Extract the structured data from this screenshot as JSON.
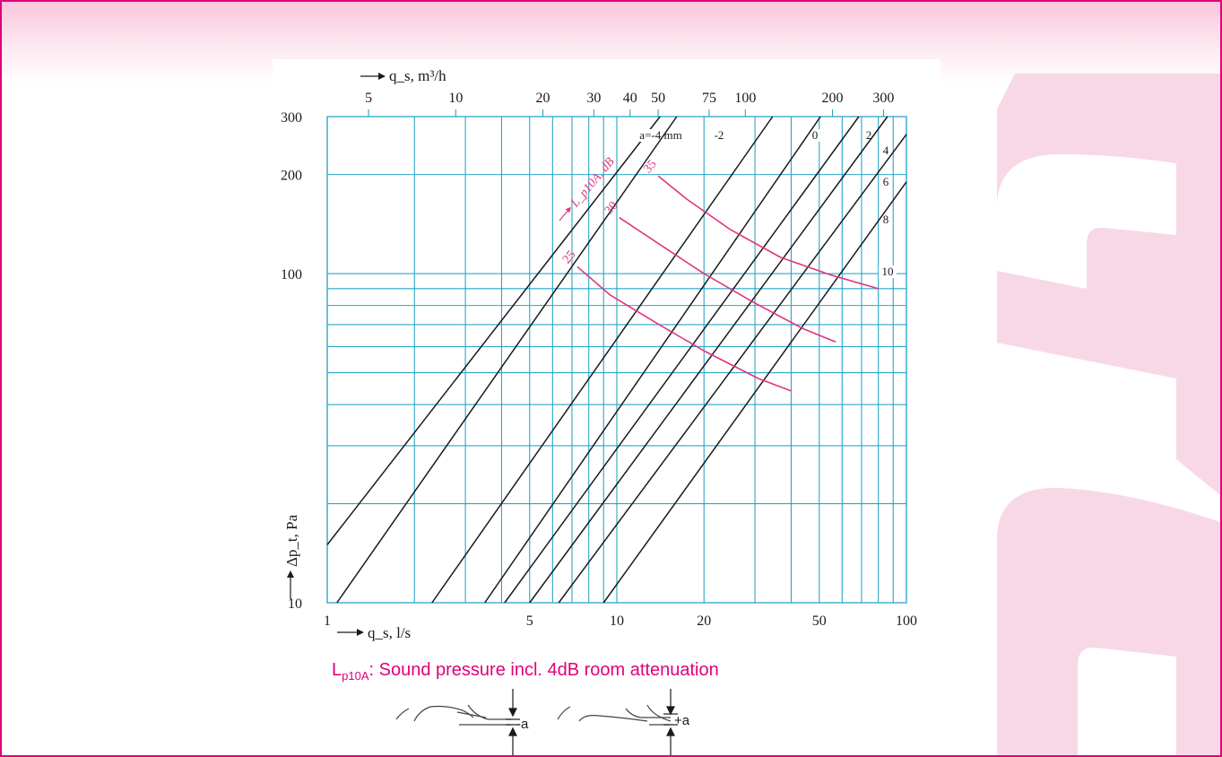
{
  "colors": {
    "accent": "#e0007a",
    "grid": "#29a6c7",
    "line": "#1a1a1a",
    "curve": "#e0357f",
    "decor": "#f8d8e6"
  },
  "chart_data": {
    "type": "line",
    "x_scale": "log",
    "y_scale": "log",
    "xlim": [
      1,
      100
    ],
    "ylim": [
      10,
      300
    ],
    "grid": true,
    "xlabel": "q_s, l/s",
    "ylabel": "Δp_t, Pa",
    "top_axis_label": "q_s, m³/h",
    "x_ticks": [
      1,
      5,
      10,
      20,
      50,
      100
    ],
    "x_tick_labels": [
      "1",
      "5",
      "10",
      "20",
      "50",
      "100"
    ],
    "y_ticks": [
      10,
      100,
      200,
      300
    ],
    "y_tick_labels": [
      "10",
      "100",
      "200",
      "300"
    ],
    "top_ticks_m3h": [
      5,
      10,
      20,
      30,
      40,
      50,
      75,
      100,
      200,
      300
    ],
    "top_tick_labels": [
      "5",
      "10",
      "20",
      "30",
      "40",
      "50",
      "75",
      "100",
      "200",
      "300"
    ],
    "series": [
      {
        "name": "a=-4 mm",
        "label": "a=-4 mm",
        "x": [
          1.0,
          14.1
        ],
        "y": [
          15.0,
          300
        ]
      },
      {
        "name": "-2",
        "label": "-2",
        "x": [
          1.08,
          16.1
        ],
        "y": [
          10,
          300
        ]
      },
      {
        "name": "0",
        "label": "0",
        "x": [
          2.3,
          34.5
        ],
        "y": [
          10,
          300
        ]
      },
      {
        "name": "2",
        "label": "2",
        "x": [
          3.5,
          50.5
        ],
        "y": [
          10,
          300
        ]
      },
      {
        "name": "4",
        "label": "4",
        "x": [
          4.1,
          68.5
        ],
        "y": [
          10,
          300
        ]
      },
      {
        "name": "6",
        "label": "6",
        "x": [
          5.0,
          86
        ],
        "y": [
          10,
          300
        ]
      },
      {
        "name": "8",
        "label": "8",
        "x": [
          6.3,
          100
        ],
        "y": [
          10,
          265
        ]
      },
      {
        "name": "10",
        "label": "10",
        "x": [
          9.0,
          100
        ],
        "y": [
          10,
          190
        ]
      }
    ],
    "sound_curves": {
      "label": "L_p10A, dB",
      "curves": [
        {
          "label": "25",
          "x": [
            7.3,
            9.5,
            14.0,
            20.2,
            30.8,
            40.0
          ],
          "y": [
            105,
            86,
            70,
            58,
            48,
            44
          ]
        },
        {
          "label": "30",
          "x": [
            10.2,
            14.0,
            20.0,
            29.5,
            44.0,
            57.0
          ],
          "y": [
            148,
            123,
            100,
            82,
            68,
            62
          ]
        },
        {
          "label": "35",
          "x": [
            13.9,
            17.5,
            24.7,
            36.8,
            55.0,
            80.0
          ],
          "y": [
            198,
            168,
            136,
            112,
            99,
            90
          ]
        }
      ]
    }
  },
  "caption": {
    "main": "L",
    "sub": "p10A",
    "rest": ": Sound pressure incl. 4dB room attenuation"
  },
  "diagram": {
    "minus_label": "-a",
    "plus_label": "+a"
  }
}
